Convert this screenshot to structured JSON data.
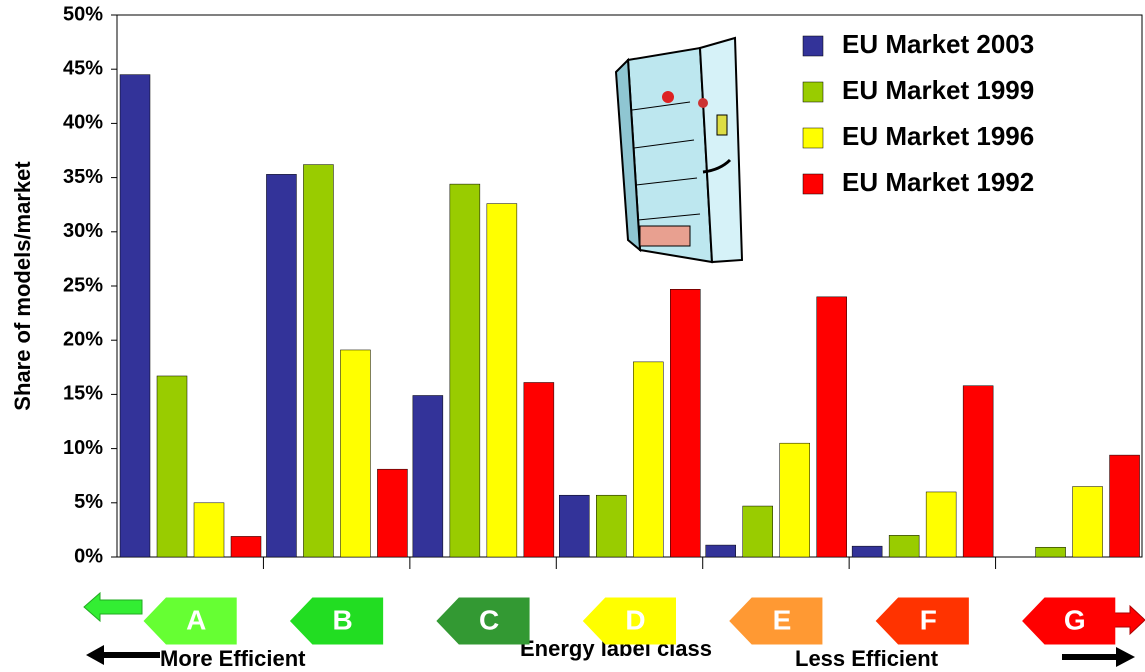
{
  "chart_data": {
    "type": "bar",
    "y_label": "Share of models/market",
    "x_label": "Energy label class",
    "annotations": [
      "More Efficient",
      "Less Efficient"
    ],
    "categories": [
      "A",
      "B",
      "C",
      "D",
      "E",
      "F",
      "G"
    ],
    "category_colors": [
      "#66ff33",
      "#22dd22",
      "#339933",
      "#ffff00",
      "#ff9933",
      "#ff3300",
      "#ff0000"
    ],
    "series": [
      {
        "name": "EU Market 2003",
        "color": "#333399",
        "values": [
          44.5,
          35.3,
          14.9,
          5.7,
          1.1,
          1.0,
          0
        ]
      },
      {
        "name": "EU Market 1999",
        "color": "#99cc00",
        "values": [
          16.7,
          36.2,
          34.4,
          5.7,
          4.7,
          2.0,
          0.9
        ]
      },
      {
        "name": "EU Market 1996",
        "color": "#ffff00",
        "values": [
          5.0,
          19.1,
          32.6,
          18.0,
          10.5,
          6.0,
          6.5
        ]
      },
      {
        "name": "EU Market 1992",
        "color": "#ff0000",
        "values": [
          1.9,
          8.1,
          16.1,
          24.7,
          24.0,
          15.8,
          9.4
        ]
      }
    ],
    "ylim": [
      0,
      50
    ],
    "yticks": [
      {
        "value": 0,
        "label": "0%"
      },
      {
        "value": 5,
        "label": "5%"
      },
      {
        "value": 10,
        "label": "10%"
      },
      {
        "value": 15,
        "label": "15%"
      },
      {
        "value": 20,
        "label": "20%"
      },
      {
        "value": 25,
        "label": "25%"
      },
      {
        "value": 30,
        "label": "30%"
      },
      {
        "value": 35,
        "label": "35%"
      },
      {
        "value": 40,
        "label": "40%"
      },
      {
        "value": 45,
        "label": "45%"
      },
      {
        "value": 50,
        "label": "50%"
      }
    ],
    "grid": false
  }
}
